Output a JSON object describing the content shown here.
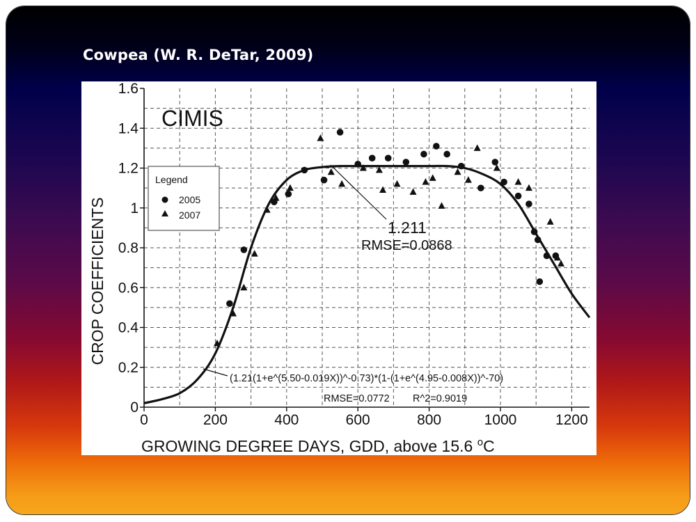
{
  "slide": {
    "title": "Cowpea (W. R. DeTar, 2009)"
  },
  "chart_data": {
    "type": "scatter",
    "panel_label": "CIMIS",
    "xlabel_main": "GROWING DEGREE DAYS, GDD, above 15.6 ",
    "xlabel_unit_sup": "o",
    "xlabel_unit": "C",
    "ylabel": "CROP COEFFICIENTS",
    "xlim": [
      0,
      1250
    ],
    "ylim": [
      0,
      1.6
    ],
    "x_ticks": [
      0,
      200,
      400,
      600,
      800,
      1000,
      1200
    ],
    "x_tick_labels": [
      "0",
      "200",
      "400",
      "600",
      "800",
      "1000",
      "1200"
    ],
    "y_ticks": [
      0,
      0.2,
      0.4,
      0.6,
      0.8,
      1,
      1.2,
      1.4,
      1.6
    ],
    "y_tick_labels": [
      "0",
      "0.2",
      "0.4",
      "0.6",
      "0.8",
      "1",
      "1.2",
      "1.4",
      "1.6"
    ],
    "grid": "dashed",
    "legend": {
      "title": "Legend",
      "placement": "left",
      "entries": [
        {
          "label": "2005",
          "marker": "circle"
        },
        {
          "label": "2007",
          "marker": "triangle"
        }
      ]
    },
    "series": [
      {
        "name": "2005",
        "marker": "circle",
        "points": [
          [
            240,
            0.52
          ],
          [
            280,
            0.79
          ],
          [
            365,
            1.03
          ],
          [
            405,
            1.07
          ],
          [
            450,
            1.19
          ],
          [
            505,
            1.14
          ],
          [
            550,
            1.38
          ],
          [
            600,
            1.22
          ],
          [
            640,
            1.25
          ],
          [
            685,
            1.25
          ],
          [
            735,
            1.23
          ],
          [
            785,
            1.27
          ],
          [
            820,
            1.31
          ],
          [
            850,
            1.27
          ],
          [
            890,
            1.21
          ],
          [
            945,
            1.1
          ],
          [
            985,
            1.23
          ],
          [
            1010,
            1.13
          ],
          [
            1050,
            1.06
          ],
          [
            1080,
            1.02
          ],
          [
            1095,
            0.88
          ],
          [
            1105,
            0.84
          ],
          [
            1110,
            0.63
          ],
          [
            1130,
            0.76
          ],
          [
            1155,
            0.76
          ]
        ]
      },
      {
        "name": "2007",
        "marker": "triangle",
        "points": [
          [
            205,
            0.32
          ],
          [
            250,
            0.47
          ],
          [
            280,
            0.6
          ],
          [
            310,
            0.77
          ],
          [
            345,
            0.99
          ],
          [
            370,
            1.05
          ],
          [
            410,
            1.1
          ],
          [
            495,
            1.35
          ],
          [
            525,
            1.18
          ],
          [
            555,
            1.12
          ],
          [
            615,
            1.2
          ],
          [
            660,
            1.19
          ],
          [
            670,
            1.09
          ],
          [
            710,
            1.12
          ],
          [
            755,
            1.08
          ],
          [
            790,
            1.13
          ],
          [
            810,
            1.15
          ],
          [
            835,
            1.01
          ],
          [
            880,
            1.18
          ],
          [
            910,
            1.14
          ],
          [
            935,
            1.3
          ],
          [
            990,
            1.2
          ],
          [
            1050,
            1.13
          ],
          [
            1080,
            1.1
          ],
          [
            1140,
            0.93
          ],
          [
            1160,
            0.75
          ],
          [
            1170,
            0.72
          ]
        ]
      }
    ],
    "curves": [
      {
        "name": "fit",
        "points": [
          [
            0,
            0.02
          ],
          [
            50,
            0.04
          ],
          [
            100,
            0.07
          ],
          [
            150,
            0.14
          ],
          [
            200,
            0.27
          ],
          [
            250,
            0.5
          ],
          [
            300,
            0.8
          ],
          [
            350,
            1.02
          ],
          [
            400,
            1.14
          ],
          [
            450,
            1.19
          ],
          [
            500,
            1.205
          ],
          [
            550,
            1.21
          ],
          [
            600,
            1.21
          ],
          [
            700,
            1.21
          ],
          [
            800,
            1.21
          ],
          [
            850,
            1.21
          ],
          [
            900,
            1.2
          ],
          [
            950,
            1.17
          ],
          [
            1000,
            1.12
          ],
          [
            1050,
            1.02
          ],
          [
            1100,
            0.87
          ],
          [
            1150,
            0.72
          ],
          [
            1200,
            0.57
          ],
          [
            1250,
            0.45
          ]
        ]
      }
    ],
    "annotations": {
      "peak_value": "1.211",
      "peak_rmse": "RMSE=0.0868",
      "equation": "(1.21(1+e^(5.50-0.019X))^-0.73)*(1-(1+e^(4.95-0.008X))^-70)",
      "fit_rmse": "RMSE=0.0772",
      "fit_r2": "R^2=0.9019"
    }
  }
}
